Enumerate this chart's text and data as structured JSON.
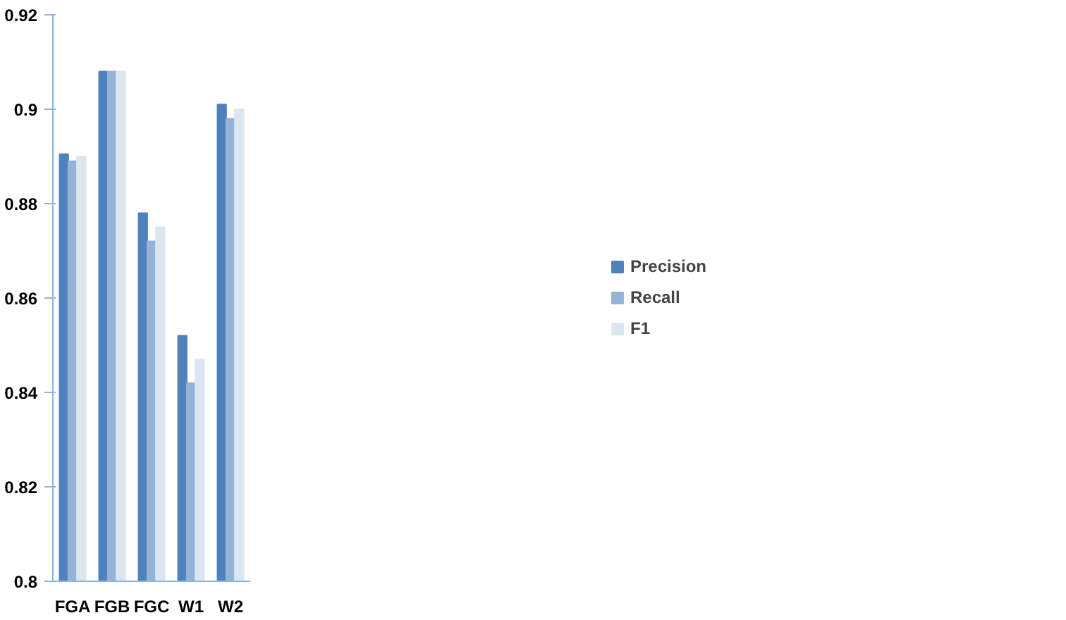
{
  "chart_data": {
    "type": "bar",
    "categories": [
      "FGA",
      "FGB",
      "FGC",
      "W1",
      "W2"
    ],
    "series": [
      {
        "name": "Precision",
        "color": "#4f81bd",
        "values": [
          0.8905,
          0.908,
          0.878,
          0.852,
          0.901
        ]
      },
      {
        "name": "Recall",
        "color": "#95b3d7",
        "values": [
          0.889,
          0.908,
          0.872,
          0.842,
          0.898
        ]
      },
      {
        "name": "F1",
        "color": "#dce6f0",
        "values": [
          0.89,
          0.908,
          0.875,
          0.847,
          0.9
        ]
      }
    ],
    "ylim": [
      0.8,
      0.92
    ],
    "yticks": [
      0.8,
      0.82,
      0.84,
      0.86,
      0.88,
      0.9,
      0.92
    ],
    "grid": false,
    "legend": "right"
  }
}
